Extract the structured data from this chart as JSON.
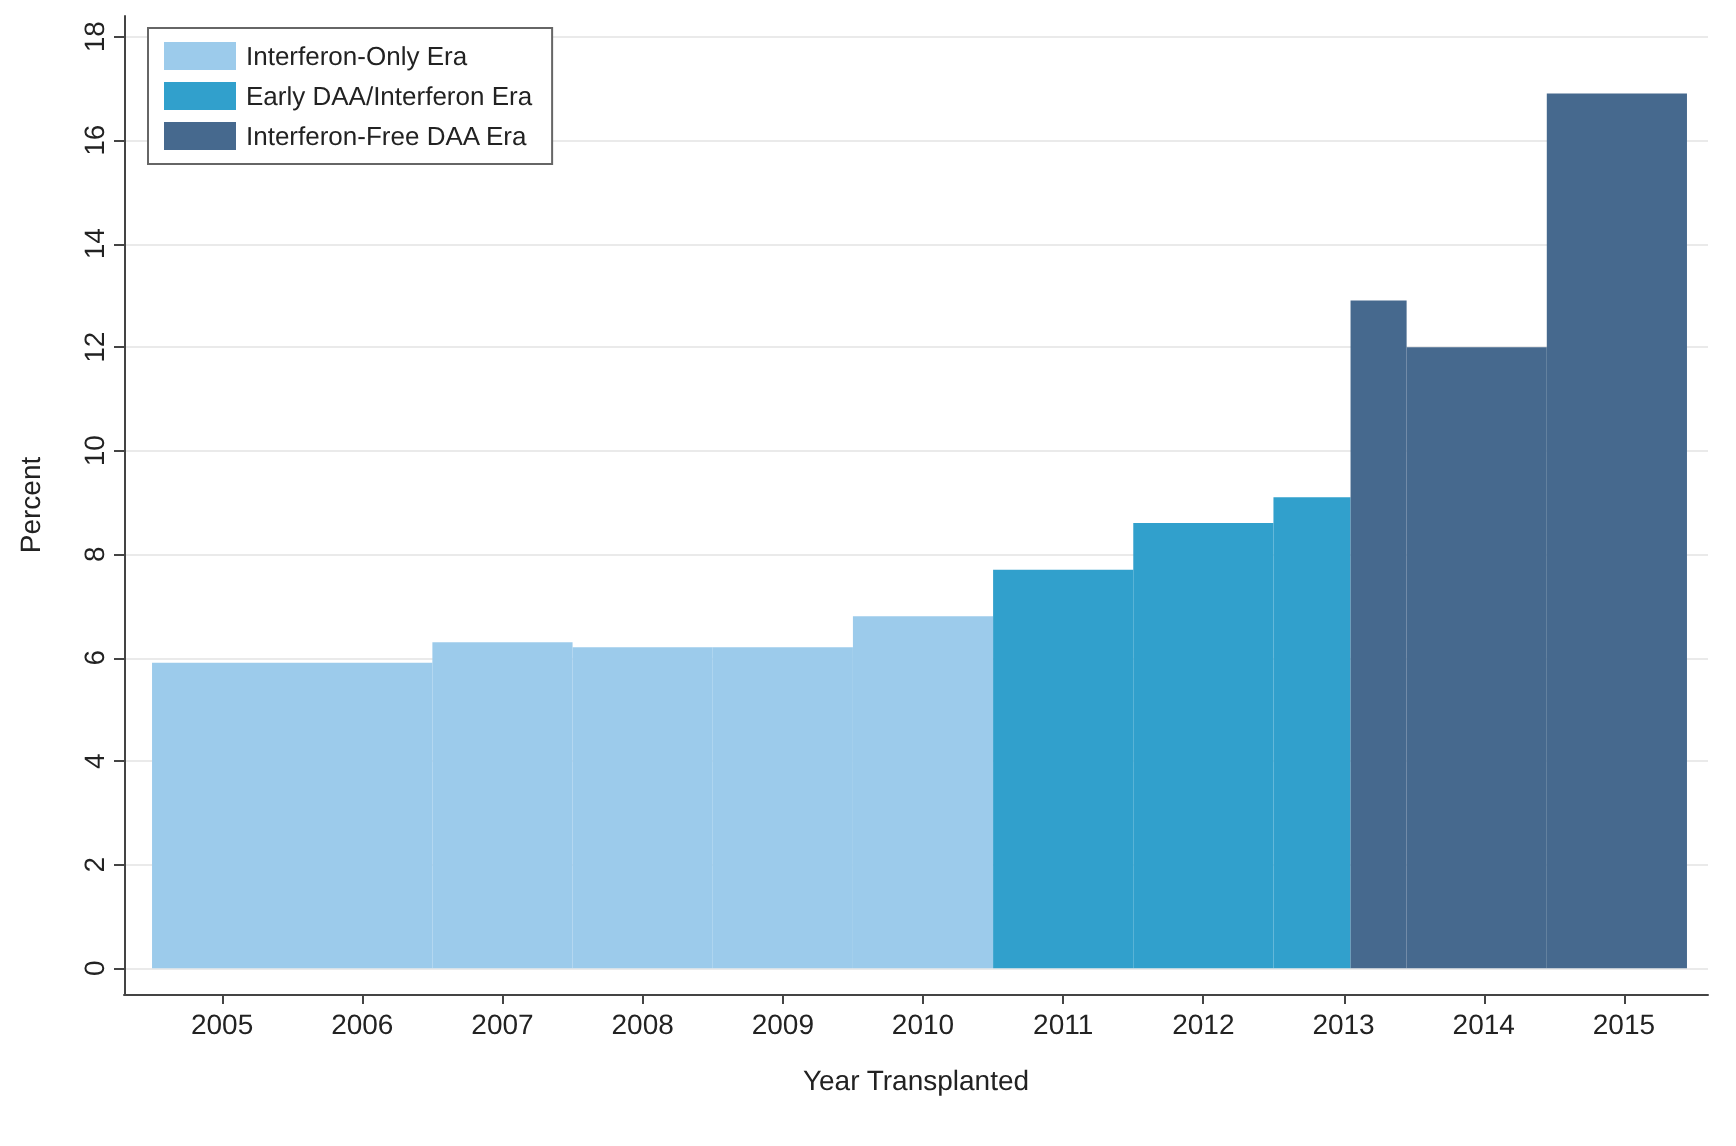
{
  "chart_data": {
    "type": "histogram",
    "xlabel": "Year Transplanted",
    "ylabel": "Percent",
    "bins": [
      2004.5,
      2006.5,
      2007.5,
      2008.5,
      2009.5,
      2010.5,
      2011.5,
      2012.5,
      2013.05,
      2013.45,
      2014.45,
      2015.45
    ],
    "xlim": [
      2004.3,
      2015.6
    ],
    "xticks": [
      2005,
      2006,
      2007,
      2008,
      2009,
      2010,
      2011,
      2012,
      2013,
      2014,
      2015
    ],
    "ylim": [
      -0.5,
      18.4
    ],
    "yticks": [
      0,
      2,
      4,
      6,
      8,
      10,
      12,
      14,
      16,
      18
    ],
    "grid": "y",
    "legend": "top left",
    "series": [
      {
        "name": "Interferon-Only Era",
        "color": "#9ccbeb",
        "values": [
          5.9,
          6.3,
          6.2,
          6.2,
          6.8,
          null,
          null,
          null,
          null,
          null,
          null
        ]
      },
      {
        "name": "Early DAA/Interferon Era",
        "color": "#31a0cc",
        "values": [
          null,
          null,
          null,
          null,
          null,
          7.7,
          8.6,
          9.1,
          null,
          null,
          null
        ]
      },
      {
        "name": "Interferon-Free DAA Era",
        "color": "#46698e",
        "values": [
          null,
          null,
          null,
          null,
          null,
          null,
          null,
          null,
          12.9,
          12.0,
          16.9
        ]
      }
    ]
  }
}
